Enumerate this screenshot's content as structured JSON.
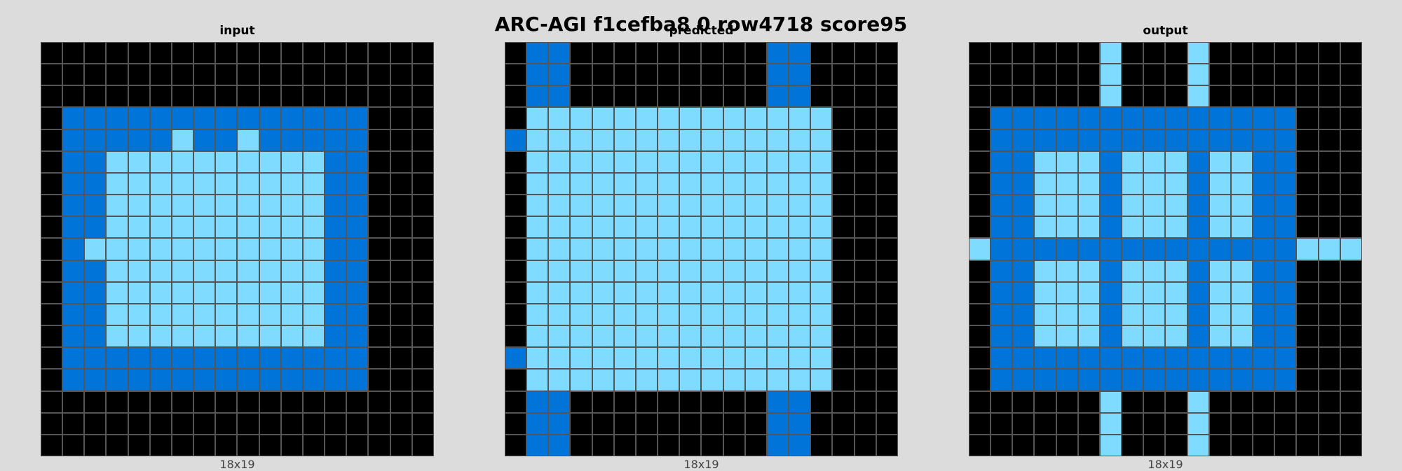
{
  "title": "ARC-AGI f1cefba8 0 row4718 score95",
  "palette": {
    "0": "#000000",
    "1": "#0074d9",
    "2": "#7fdbff"
  },
  "panels": [
    {
      "label": "input",
      "size_label": "18x19",
      "grid": [
        "000000000000000000",
        "000000000000000000",
        "000000000000000000",
        "011111111111111000",
        "011111211211111000",
        "011222222222211000",
        "011222222222211000",
        "011222222222211000",
        "011222222222211000",
        "012222222222211000",
        "011222222222211000",
        "011222222222211000",
        "011222222222211000",
        "011222222222211000",
        "011111111111111000",
        "011111111111111000",
        "000000000000000000",
        "000000000000000000",
        "000000000000000000"
      ]
    },
    {
      "label": "predicted",
      "size_label": "18x19",
      "grid": [
        "011000000000110000",
        "011000000000110000",
        "011000000000110000",
        "022222222222222000",
        "122222222222222000",
        "022222222222222000",
        "022222222222222000",
        "022222222222222000",
        "022222222222222000",
        "022222222222222000",
        "022222222222222000",
        "022222222222222000",
        "022222222222222000",
        "022222222222222000",
        "122222222222222000",
        "022222222222222000",
        "011000000000110000",
        "011000000000110000",
        "011000000000110000"
      ]
    },
    {
      "label": "output",
      "size_label": "18x19",
      "grid": [
        "000000200020000000",
        "000000200020000000",
        "000000200020000000",
        "011111111111111000",
        "011111111111111000",
        "011222122212211000",
        "011222122212211000",
        "011222122212211000",
        "011222122212211000",
        "211111111111111222",
        "011222122212211000",
        "011222122212211000",
        "011222122212211000",
        "011222122212211000",
        "011111111111111000",
        "011111111111111000",
        "000000200020000000",
        "000000200020000000",
        "000000200020000000"
      ]
    }
  ]
}
